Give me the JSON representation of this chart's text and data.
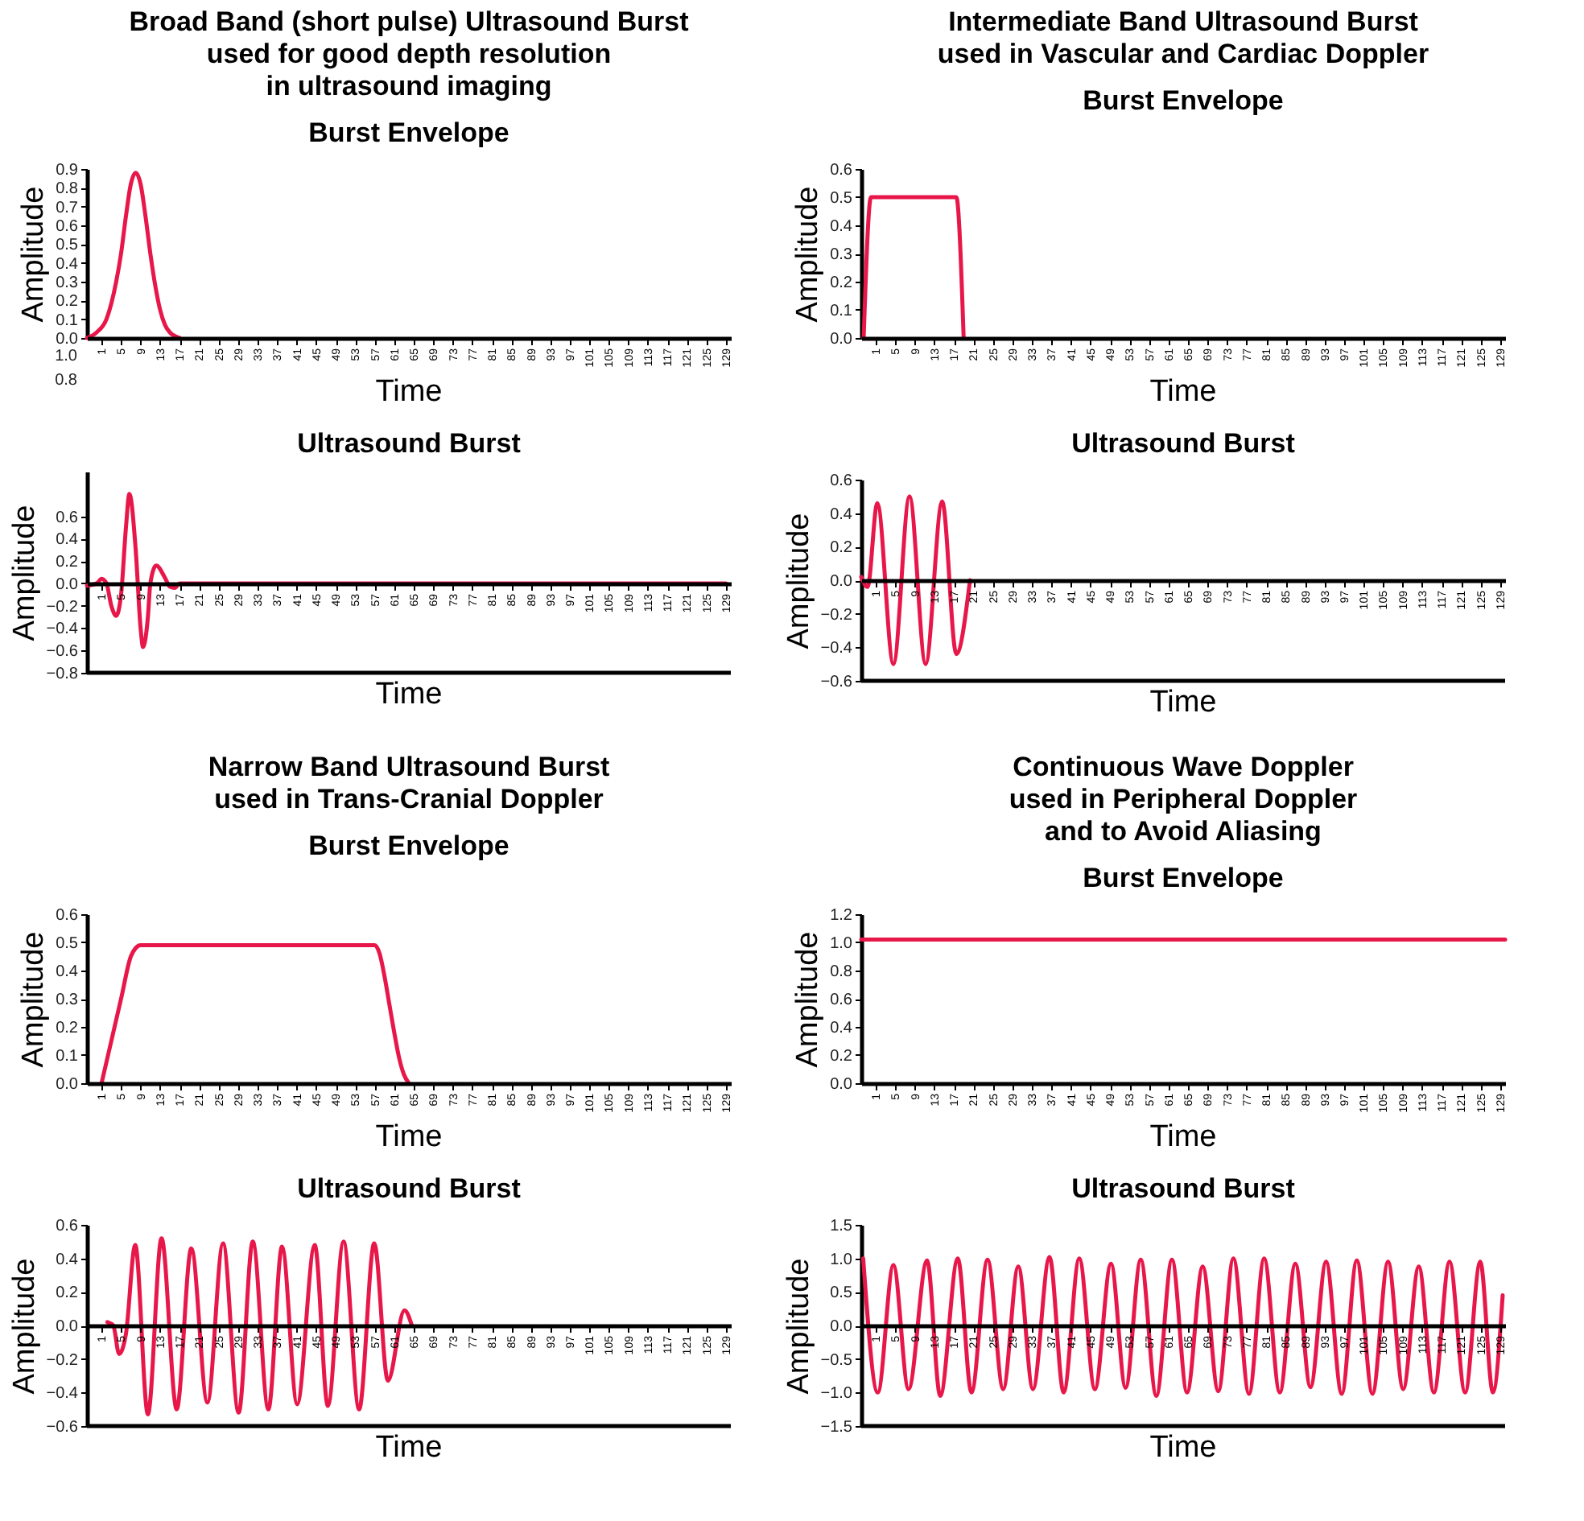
{
  "chart_data": [
    {
      "type": "line",
      "title": "Broad Band (short pulse) Ultrasound Burst\nused for good depth resolution\nin ultrasound imaging",
      "subtitle": "Burst Envelope",
      "xlabel": "Time",
      "ylabel": "Amplitude",
      "color": "#e8174a",
      "annotations": [
        "1.0",
        "0.8"
      ],
      "x": [
        -2,
        0,
        2,
        4,
        5,
        6,
        7,
        8,
        9,
        10,
        11,
        12,
        13,
        14,
        15,
        17
      ],
      "values": [
        0,
        0.03,
        0.1,
        0.3,
        0.45,
        0.65,
        0.82,
        0.88,
        0.82,
        0.65,
        0.45,
        0.28,
        0.15,
        0.07,
        0.03,
        0
      ],
      "xlim": [
        -2,
        130
      ],
      "ylim": [
        0,
        0.9
      ],
      "yticks": [
        {
          "value": 0,
          "label": "0.0"
        },
        0.1,
        0.2,
        0.3,
        0.4,
        0.5,
        0.6,
        0.7,
        0.8,
        0.9
      ],
      "xticks": [
        1,
        5,
        9,
        13,
        17,
        21,
        25,
        29,
        33,
        37,
        41,
        45,
        49,
        53,
        57,
        61,
        65,
        69,
        73,
        77,
        81,
        85,
        89,
        93,
        97,
        101,
        105,
        109,
        113,
        117,
        121,
        125,
        129
      ]
    },
    {
      "type": "line",
      "title": "Ultrasound Burst",
      "xlabel": "Time",
      "ylabel": "Amplitude",
      "color": "#e8174a",
      "x": [
        -2,
        0,
        1,
        2,
        3,
        4,
        5,
        6,
        6.7,
        8,
        9,
        9.5,
        10.5,
        11,
        12.2,
        14,
        15,
        16,
        17,
        129
      ],
      "values": [
        -0.02,
        0,
        0.04,
        0,
        -0.2,
        -0.29,
        -0.1,
        0.5,
        0.8,
        0.3,
        -0.4,
        -0.57,
        -0.3,
        0,
        0.16,
        0.05,
        -0.03,
        -0.04,
        0,
        0
      ],
      "xlim": [
        -2,
        130
      ],
      "ylim": [
        -0.8,
        1.0
      ],
      "yticks": [
        {
          "value": -0.8,
          "label": "−0.8"
        },
        {
          "value": -0.6,
          "label": "−0.6"
        },
        {
          "value": -0.4,
          "label": "−0.4"
        },
        {
          "value": -0.2,
          "label": "−0.2"
        },
        {
          "value": 0,
          "label": "0.0"
        },
        0.2,
        0.4,
        0.6
      ],
      "xticks": [
        1,
        5,
        9,
        13,
        17,
        21,
        25,
        29,
        33,
        37,
        41,
        45,
        49,
        53,
        57,
        61,
        65,
        69,
        73,
        77,
        81,
        85,
        89,
        93,
        97,
        101,
        105,
        109,
        113,
        117,
        121,
        125,
        129
      ]
    },
    {
      "type": "line",
      "title": "Intermediate Band Ultrasound Burst\nused in Vascular and Cardiac Doppler",
      "subtitle": "Burst Envelope",
      "xlabel": "Time",
      "ylabel": "Amplitude",
      "color": "#e8174a",
      "x": [
        -1.5,
        0,
        17.5,
        19
      ],
      "values": [
        0,
        0.5,
        0.5,
        0
      ],
      "xlim": [
        -2,
        130
      ],
      "ylim": [
        0,
        0.6
      ],
      "yticks": [
        {
          "value": 0,
          "label": "0.0"
        },
        0.1,
        0.2,
        0.3,
        0.4,
        0.5,
        0.6
      ],
      "xticks": [
        1,
        5,
        9,
        13,
        17,
        21,
        25,
        29,
        33,
        37,
        41,
        45,
        49,
        53,
        57,
        61,
        65,
        69,
        73,
        77,
        81,
        85,
        89,
        93,
        97,
        101,
        105,
        109,
        113,
        117,
        121,
        125,
        129
      ]
    },
    {
      "type": "line",
      "title": "Ultrasound Burst",
      "xlabel": "Time",
      "ylabel": "Amplitude",
      "color": "#e8174a",
      "x": [
        -2,
        -0.7,
        1.3,
        4.6,
        7.9,
        11.2,
        14.6,
        17.5,
        20.3
      ],
      "values": [
        0.02,
        -0.04,
        0.46,
        -0.5,
        0.5,
        -0.5,
        0.47,
        -0.44,
        0
      ],
      "xlim": [
        -2,
        130
      ],
      "ylim": [
        -0.6,
        0.6
      ],
      "yticks": [
        {
          "value": -0.6,
          "label": "−0.6"
        },
        {
          "value": -0.4,
          "label": "−0.4"
        },
        {
          "value": -0.2,
          "label": "−0.2"
        },
        {
          "value": 0,
          "label": "0.0"
        },
        0.2,
        0.4,
        0.6
      ],
      "xticks": [
        1,
        5,
        9,
        13,
        17,
        21,
        25,
        29,
        33,
        37,
        41,
        45,
        49,
        53,
        57,
        61,
        65,
        69,
        73,
        77,
        81,
        85,
        89,
        93,
        97,
        101,
        105,
        109,
        113,
        117,
        121,
        125,
        129
      ]
    },
    {
      "type": "line",
      "title": "Narrow Band Ultrasound Burst\nused in Trans-Cranial Doppler",
      "subtitle": "Burst Envelope",
      "xlabel": "Time",
      "ylabel": "Amplitude",
      "color": "#e8174a",
      "x": [
        1,
        3,
        5,
        7,
        8,
        9,
        57,
        58,
        59,
        60,
        61,
        62,
        63,
        64
      ],
      "values": [
        0,
        0.15,
        0.3,
        0.45,
        0.48,
        0.49,
        0.49,
        0.46,
        0.38,
        0.28,
        0.18,
        0.09,
        0.03,
        0
      ],
      "xlim": [
        -2,
        130
      ],
      "ylim": [
        0,
        0.6
      ],
      "yticks": [
        {
          "value": 0,
          "label": "0.0"
        },
        0.1,
        0.2,
        0.3,
        0.4,
        0.5,
        0.6
      ],
      "xticks": [
        1,
        5,
        9,
        13,
        17,
        21,
        25,
        29,
        33,
        37,
        41,
        45,
        49,
        53,
        57,
        61,
        65,
        69,
        73,
        77,
        81,
        85,
        89,
        93,
        97,
        101,
        105,
        109,
        113,
        117,
        121,
        125,
        129
      ]
    },
    {
      "type": "line",
      "title": "Ultrasound Burst",
      "xlabel": "Time",
      "ylabel": "Amplitude",
      "color": "#e8174a",
      "x": [
        2.2,
        3.4,
        4.6,
        6,
        7.9,
        10.5,
        13.3,
        16.4,
        19.4,
        22.7,
        25.9,
        29.1,
        32,
        35.2,
        38,
        41.1,
        44.7,
        47.4,
        50.6,
        53.8,
        56.9,
        59.7,
        63.1,
        64.6
      ],
      "values": [
        0.02,
        0,
        -0.17,
        -0.05,
        0.48,
        -0.53,
        0.52,
        -0.5,
        0.46,
        -0.46,
        0.49,
        -0.52,
        0.5,
        -0.5,
        0.47,
        -0.47,
        0.48,
        -0.48,
        0.5,
        -0.5,
        0.49,
        -0.33,
        0.09,
        0
      ],
      "xlim": [
        -2,
        130
      ],
      "ylim": [
        -0.6,
        0.6
      ],
      "yticks": [
        {
          "value": -0.6,
          "label": "−0.6"
        },
        {
          "value": -0.4,
          "label": "−0.4"
        },
        {
          "value": -0.2,
          "label": "−0.2"
        },
        {
          "value": 0,
          "label": "0.0"
        },
        0.2,
        0.4,
        0.6
      ],
      "xticks": [
        1,
        5,
        9,
        13,
        17,
        21,
        25,
        29,
        33,
        37,
        41,
        45,
        49,
        53,
        57,
        61,
        65,
        69,
        73,
        77,
        81,
        85,
        89,
        93,
        97,
        101,
        105,
        109,
        113,
        117,
        121,
        125,
        129
      ]
    },
    {
      "type": "line",
      "title": "Continuous Wave Doppler\nused in Peripheral Doppler\nand to Avoid Aliasing",
      "subtitle": "Burst Envelope",
      "xlabel": "Time",
      "ylabel": "Amplitude",
      "color": "#e8174a",
      "x": [
        -2,
        130
      ],
      "values": [
        1.02,
        1.02
      ],
      "xlim": [
        -2,
        130
      ],
      "ylim": [
        0,
        1.2
      ],
      "yticks": [
        {
          "value": 0,
          "label": "0.0"
        },
        0.2,
        0.4,
        0.6,
        0.8,
        {
          "value": 1,
          "label": "1.0"
        },
        1.2
      ],
      "xticks": [
        1,
        5,
        9,
        13,
        17,
        21,
        25,
        29,
        33,
        37,
        41,
        45,
        49,
        53,
        57,
        61,
        65,
        69,
        73,
        77,
        81,
        85,
        89,
        93,
        97,
        101,
        105,
        109,
        113,
        117,
        121,
        125,
        129
      ]
    },
    {
      "type": "line",
      "title": "Ultrasound Burst",
      "xlabel": "Time",
      "ylabel": "Amplitude",
      "color": "#e8174a",
      "x": [
        -1.6,
        1.4,
        4.6,
        7.7,
        11.5,
        14.2,
        17.8,
        20.6,
        23.9,
        27.1,
        30.2,
        33.2,
        36.6,
        39.5,
        42.7,
        45.9,
        49.2,
        52.2,
        55.3,
        58.5,
        61.7,
        64.8,
        68.0,
        71.2,
        74.3,
        77.5,
        80.6,
        83.8,
        87.0,
        90.1,
        93.3,
        96.5,
        99.6,
        102.8,
        106.0,
        109.1,
        112.3,
        115.4,
        118.6,
        121.8,
        124.9,
        127.5,
        129.5
      ],
      "values": [
        1.0,
        -1.0,
        0.9,
        -0.95,
        0.97,
        -1.05,
        1.0,
        -1.0,
        0.98,
        -0.95,
        0.88,
        -0.95,
        1.02,
        -1.0,
        1.0,
        -0.95,
        0.92,
        -0.93,
        0.98,
        -1.05,
        0.98,
        -1.0,
        0.88,
        -0.98,
        1.0,
        -1.02,
        1.0,
        -1.0,
        0.92,
        -0.92,
        0.95,
        -1.02,
        0.97,
        -1.02,
        0.95,
        -0.95,
        0.88,
        -1.0,
        0.95,
        -1.0,
        0.95,
        -1.0,
        0.45
      ],
      "xlim": [
        -2,
        130
      ],
      "ylim": [
        -1.5,
        1.5
      ],
      "yticks": [
        {
          "value": -1.5,
          "label": "−1.5"
        },
        {
          "value": -1,
          "label": "−1.0"
        },
        {
          "value": -0.5,
          "label": "−0.5"
        },
        {
          "value": 0,
          "label": "0.0"
        },
        0.5,
        {
          "value": 1,
          "label": "1.0"
        },
        1.5
      ],
      "xticks": [
        1,
        5,
        9,
        13,
        17,
        21,
        25,
        29,
        33,
        37,
        41,
        45,
        49,
        53,
        57,
        61,
        65,
        69,
        73,
        77,
        81,
        85,
        89,
        93,
        97,
        101,
        105,
        109,
        113,
        117,
        121,
        125,
        129
      ]
    }
  ]
}
